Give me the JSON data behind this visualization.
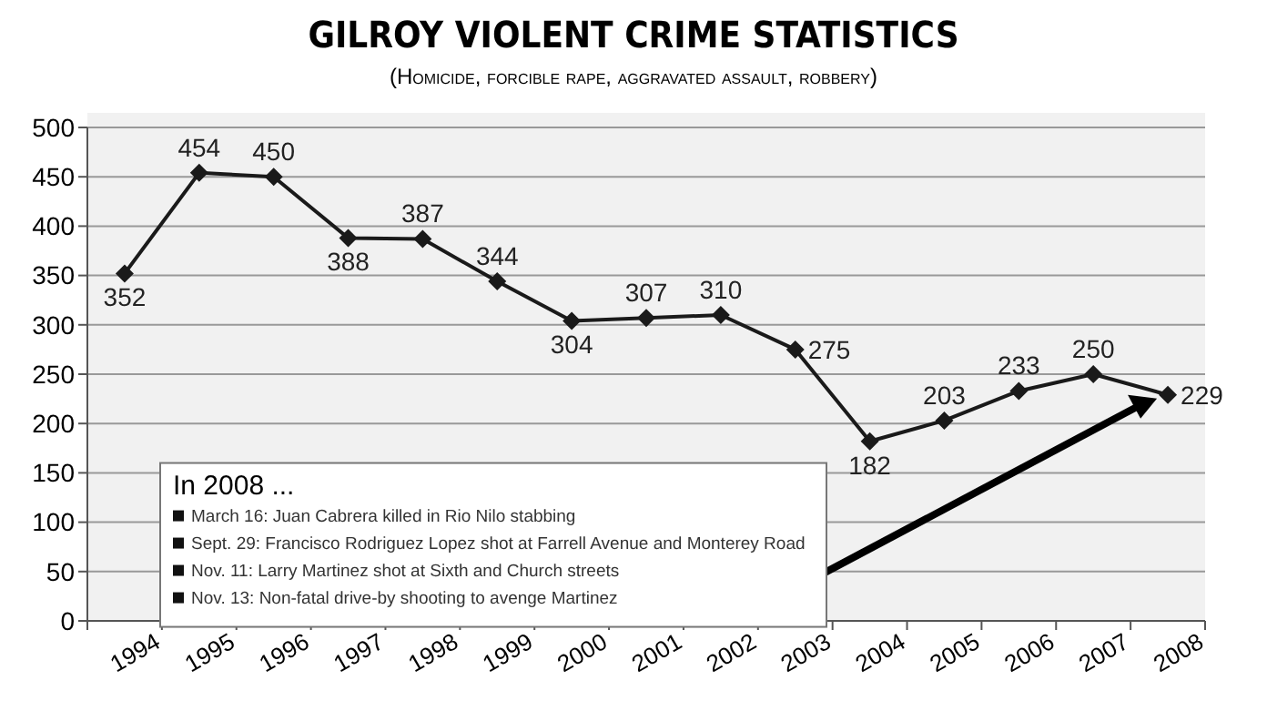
{
  "chart_data": {
    "type": "line",
    "title": "GILROY VIOLENT CRIME STATISTICS",
    "subtitle": "(Homicide, forcible rape, aggravated assault, robbery)",
    "categories": [
      "1994",
      "1995",
      "1996",
      "1997",
      "1998",
      "1999",
      "2000",
      "2001",
      "2002",
      "2003",
      "2004",
      "2005",
      "2006",
      "2007",
      "2008"
    ],
    "series": [
      {
        "color": "#1a1a1a",
        "values": [
          352,
          454,
          450,
          388,
          387,
          344,
          304,
          307,
          310,
          275,
          182,
          203,
          233,
          250,
          229
        ]
      }
    ],
    "ylim": [
      0,
      500
    ],
    "yticks": [
      0,
      50,
      100,
      150,
      200,
      250,
      300,
      350,
      400,
      450,
      500
    ],
    "grid": "y",
    "marker": "diamond",
    "line_style": "solid",
    "data_labels": true,
    "annotations": [
      "In 2008 ...",
      "March 16: Juan Cabrera killed in Rio Nilo stabbing",
      "Sept. 29: Francisco Rodriguez Lopez shot at Farrell Avenue and Monterey Road",
      "Nov. 11: Larry Martinez shot at Sixth and Church streets",
      "Nov. 13: Non-fatal drive-by shooting to avenge Martinez"
    ]
  }
}
